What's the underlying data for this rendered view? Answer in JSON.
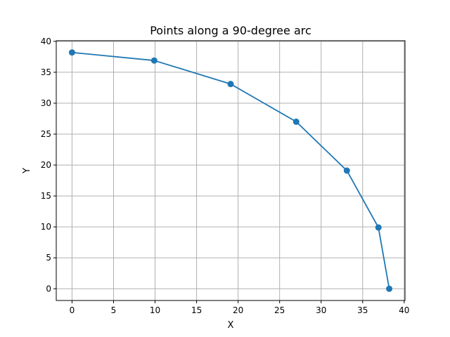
{
  "chart_data": {
    "type": "line",
    "title": "Points along a 90-degree arc",
    "xlabel": "X",
    "ylabel": "Y",
    "xlim": [
      -1.9,
      40.1
    ],
    "ylim": [
      -1.9,
      40.1
    ],
    "xticks": [
      0,
      5,
      10,
      15,
      20,
      25,
      30,
      35,
      40
    ],
    "yticks": [
      0,
      5,
      10,
      15,
      20,
      25,
      30,
      35,
      40
    ],
    "grid": true,
    "marker": "circle",
    "series": [
      {
        "color": "#1f77b4",
        "x": [
          0.0,
          9.9,
          19.1,
          27.0,
          33.1,
          36.9,
          38.2
        ],
        "y": [
          38.2,
          36.9,
          33.1,
          27.0,
          19.1,
          9.9,
          0.0
        ]
      }
    ]
  }
}
